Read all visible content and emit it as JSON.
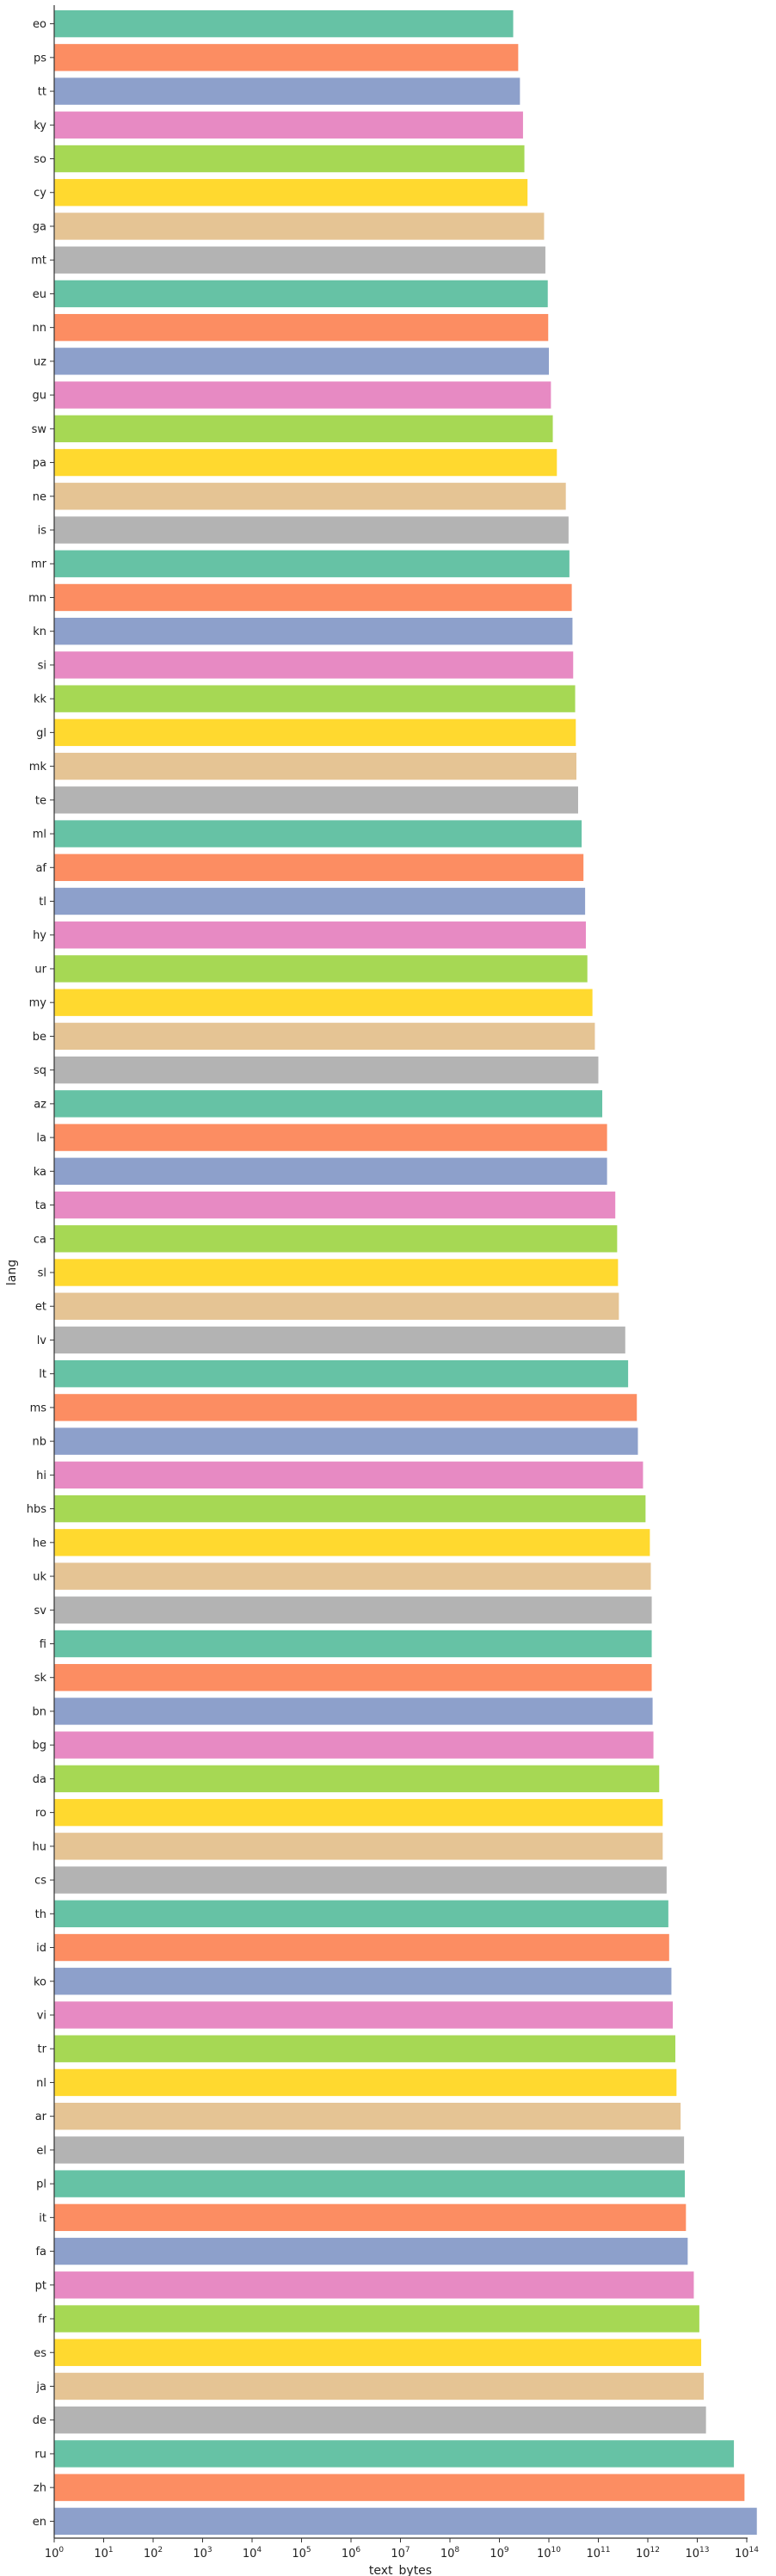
{
  "chart_data": {
    "type": "bar",
    "orientation": "horizontal",
    "xlabel": "text_bytes",
    "ylabel": "lang",
    "xscale": "log",
    "xlim": [
      1,
      100000000000000
    ],
    "xtick_values": [
      1,
      10,
      100,
      1000,
      10000,
      100000,
      1000000,
      10000000,
      100000000,
      1000000000,
      10000000000,
      100000000000,
      1000000000000,
      10000000000000,
      100000000000000
    ],
    "xtick_labels": [
      "10^0",
      "10^1",
      "10^2",
      "10^3",
      "10^4",
      "10^5",
      "10^6",
      "10^7",
      "10^8",
      "10^9",
      "10^10",
      "10^11",
      "10^12",
      "10^13",
      "10^14"
    ],
    "palette": [
      "#66c2a5",
      "#fc8d62",
      "#8da0cb",
      "#e78ac3",
      "#a6d854",
      "#ffd92f",
      "#e5c494",
      "#b3b3b3"
    ],
    "grid": false,
    "categories": [
      "eo",
      "ps",
      "tt",
      "ky",
      "so",
      "cy",
      "ga",
      "mt",
      "eu",
      "nn",
      "uz",
      "gu",
      "sw",
      "pa",
      "ne",
      "is",
      "mr",
      "mn",
      "kn",
      "si",
      "kk",
      "gl",
      "mk",
      "te",
      "ml",
      "af",
      "tl",
      "hy",
      "ur",
      "my",
      "be",
      "sq",
      "az",
      "la",
      "ka",
      "ta",
      "ca",
      "sl",
      "et",
      "lv",
      "lt",
      "ms",
      "nb",
      "hi",
      "hbs",
      "he",
      "uk",
      "sv",
      "fi",
      "sk",
      "bn",
      "bg",
      "da",
      "ro",
      "hu",
      "cs",
      "th",
      "id",
      "ko",
      "vi",
      "tr",
      "nl",
      "ar",
      "el",
      "pl",
      "it",
      "fa",
      "pt",
      "fr",
      "es",
      "ja",
      "de",
      "ru",
      "zh",
      "en"
    ],
    "values": [
      1900000000.0,
      2400000000.0,
      2600000000.0,
      3000000000.0,
      3200000000.0,
      3700000000.0,
      8000000000.0,
      8500000000.0,
      9500000000.0,
      9700000000.0,
      10000000000.0,
      11000000000.0,
      12000000000.0,
      14500000000.0,
      22000000000.0,
      25000000000.0,
      26000000000.0,
      29000000000.0,
      30000000000.0,
      31000000000.0,
      34000000000.0,
      35000000000.0,
      36000000000.0,
      39000000000.0,
      46000000000.0,
      50000000000.0,
      54000000000.0,
      56000000000.0,
      60000000000.0,
      76000000000.0,
      85000000000.0,
      100000000000.0,
      120000000000.0,
      150000000000.0,
      150000000000.0,
      220000000000.0,
      240000000000.0,
      250000000000.0,
      260000000000.0,
      350000000000.0,
      400000000000.0,
      600000000000.0,
      630000000000.0,
      800000000000.0,
      900000000000.0,
      1100000000000.0,
      1150000000000.0,
      1200000000000.0,
      1200000000000.0,
      1200000000000.0,
      1250000000000.0,
      1300000000000.0,
      1700000000000.0,
      2000000000000.0,
      2000000000000.0,
      2400000000000.0,
      2600000000000.0,
      2700000000000.0,
      3000000000000.0,
      3200000000000.0,
      3600000000000.0,
      3800000000000.0,
      4600000000000.0,
      5400000000000.0,
      5600000000000.0,
      5900000000000.0,
      6400000000000.0,
      8500000000000.0,
      11000000000000.0,
      12000000000000.0,
      13500000000000.0,
      15000000000000.0,
      55000000000000.0,
      90000000000000.0,
      160000000000000.0
    ]
  }
}
